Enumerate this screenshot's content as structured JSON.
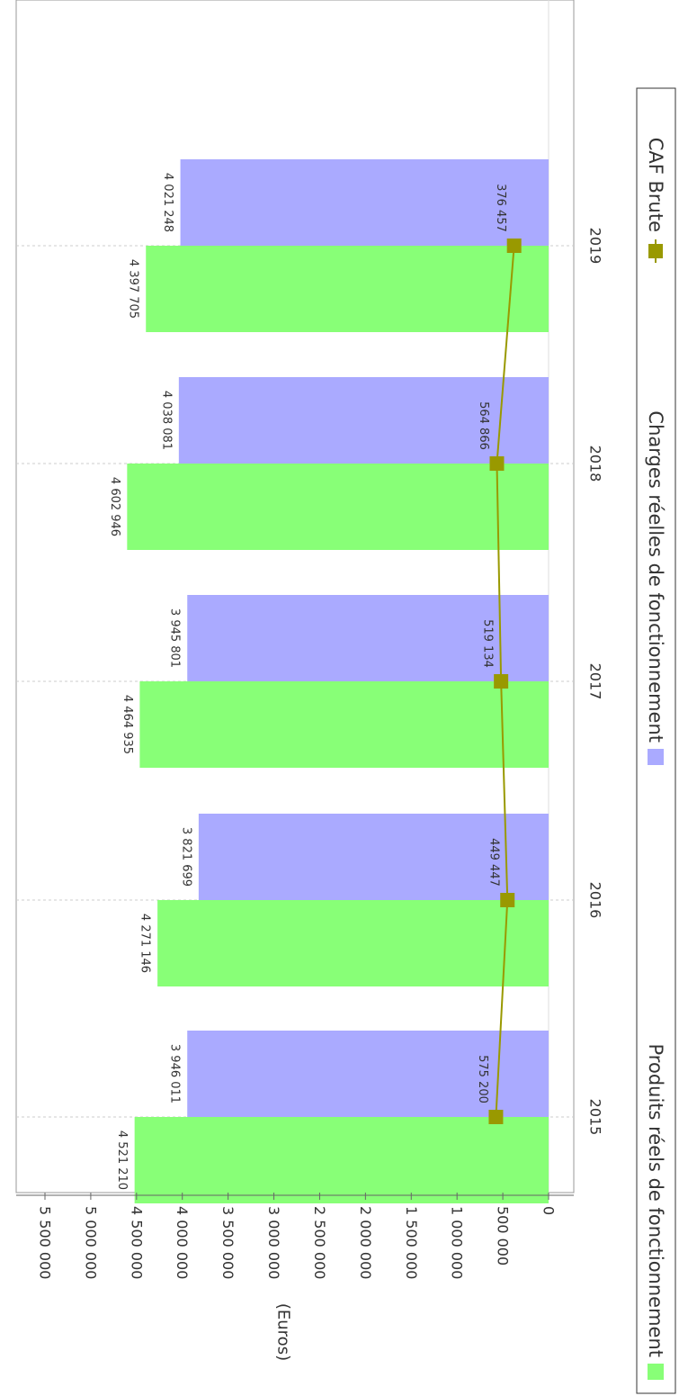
{
  "chart_data": {
    "type": "bar",
    "orientation": "rotated-90-clockwise",
    "categories": [
      "2015",
      "2016",
      "2017",
      "2018",
      "2019"
    ],
    "ylabel": "(Euros)",
    "ylim": [
      0,
      5500000
    ],
    "y_ticks": [
      0,
      500000,
      1000000,
      1500000,
      2000000,
      2500000,
      3000000,
      3500000,
      4000000,
      4500000,
      5000000,
      5500000
    ],
    "y_tick_labels": [
      "0",
      "500 000",
      "1 000 000",
      "1 500 000",
      "2 000 000",
      "2 500 000",
      "3 000 000",
      "3 500 000",
      "4 000 000",
      "4 500 000",
      "5 000 000",
      "5 500 000"
    ],
    "grid": true,
    "legend_position": "bottom",
    "series": [
      {
        "name": "Produits réels de fonctionnement",
        "kind": "bar",
        "color": "#88ff77",
        "values": [
          4521210,
          4271146,
          4464935,
          4602946,
          4397705
        ],
        "labels": [
          "4 521 210",
          "4 271 146",
          "4 464 935",
          "4 602 946",
          "4 397 705"
        ]
      },
      {
        "name": "Charges réelles de fonctionnement",
        "kind": "bar",
        "color": "#aaaaff",
        "values": [
          3946011,
          3821699,
          3945801,
          4038081,
          4021248
        ],
        "labels": [
          "3 946 011",
          "3 821 699",
          "3 945 801",
          "4 038 081",
          "4 021 248"
        ]
      },
      {
        "name": "CAF Brute",
        "kind": "line",
        "color": "#999900",
        "values": [
          575200,
          449447,
          519134,
          564866,
          376457
        ],
        "labels": [
          "575 200",
          "449 447",
          "519 134",
          "564 866",
          "376 457"
        ]
      }
    ]
  }
}
